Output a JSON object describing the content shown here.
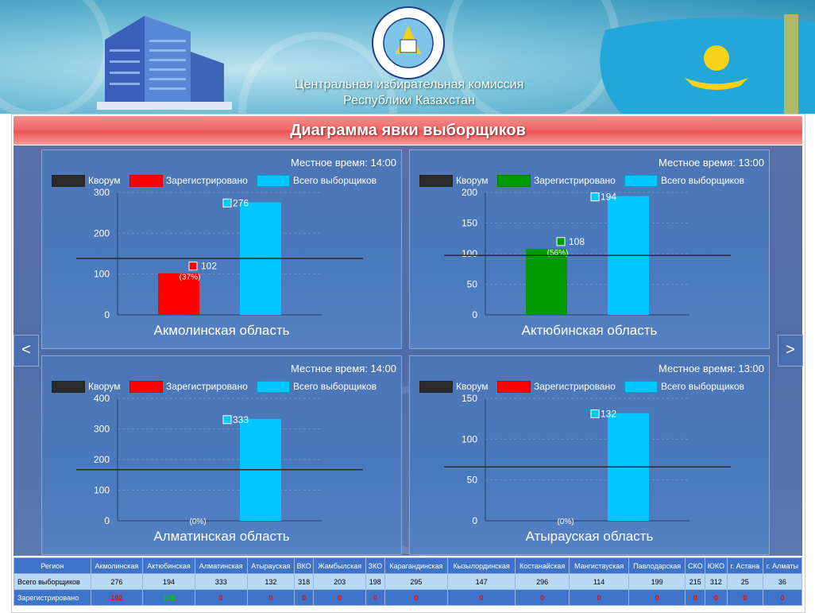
{
  "header": {
    "title_line1": "Центральная избирательная комиссия",
    "title_line2": "Республики Казахстан"
  },
  "page_title": "Диаграмма явки выборщиков",
  "nav": {
    "prev": "<",
    "next": ">"
  },
  "legend": {
    "quorum": "Кворум",
    "registered": "Зарегистрировано",
    "total": "Всего выборщиков"
  },
  "colors": {
    "quorum": "#2b2b2b",
    "total": "#00c8ff",
    "red": "#ff0000",
    "green": "#009900",
    "title_bar": "#ef5a5a"
  },
  "panels": [
    {
      "time": "Местное время: 14:00",
      "region": "Акмолинская область"
    },
    {
      "time": "Местное время: 13:00",
      "region": "Актюбинская область"
    },
    {
      "time": "Местное время: 14:00",
      "region": "Алматинская область"
    },
    {
      "time": "Местное время: 13:00",
      "region": "Атырауская область"
    }
  ],
  "chart_data": [
    {
      "type": "bar",
      "region": "Акмолинская область",
      "ylim": [
        0,
        300
      ],
      "yticks": [
        0,
        100,
        200,
        300
      ],
      "quorum": 138,
      "registered": 102,
      "registered_label": "102",
      "percent_label": "(37%)",
      "registered_color": "#ff0000",
      "total": 276,
      "total_label": "276"
    },
    {
      "type": "bar",
      "region": "Актюбинская область",
      "ylim": [
        0,
        200
      ],
      "yticks": [
        0,
        50,
        100,
        150,
        200
      ],
      "quorum": 97,
      "registered": 108,
      "registered_label": "108",
      "percent_label": "(56%)",
      "registered_color": "#009900",
      "total": 194,
      "total_label": "194"
    },
    {
      "type": "bar",
      "region": "Алматинская область",
      "ylim": [
        0,
        400
      ],
      "yticks": [
        0,
        100,
        200,
        300,
        400
      ],
      "quorum": 167,
      "registered": 0,
      "registered_label": "",
      "percent_label": "(0%)",
      "registered_color": "#ff0000",
      "total": 333,
      "total_label": "333"
    },
    {
      "type": "bar",
      "region": "Атырауская область",
      "ylim": [
        0,
        150
      ],
      "yticks": [
        0,
        50,
        100,
        150
      ],
      "quorum": 66,
      "registered": 0,
      "registered_label": "",
      "percent_label": "(0%)",
      "registered_color": "#ff0000",
      "total": 132,
      "total_label": "132"
    }
  ],
  "table": {
    "headers": [
      "Регион",
      "Акмолинская",
      "Актюбинская",
      "Алматинская",
      "Атырауская",
      "ВКО",
      "Жамбылская",
      "ЗКО",
      "Карагандинская",
      "Кызылординская",
      "Костанайская",
      "Мангистауская",
      "Павлодарская",
      "СКО",
      "ЮКО",
      "г. Астана",
      "г. Алматы"
    ],
    "row_total": [
      "Всего выборщиков",
      "276",
      "194",
      "333",
      "132",
      "318",
      "203",
      "198",
      "295",
      "147",
      "296",
      "114",
      "199",
      "215",
      "312",
      "25",
      "36"
    ],
    "row_registered": [
      "Зарегистрировано",
      "102",
      "108",
      "0",
      "0",
      "0",
      "0",
      "0",
      "0",
      "0",
      "0",
      "0",
      "0",
      "0",
      "0",
      "0",
      "0"
    ],
    "registered_colors": [
      "",
      "#ff0000",
      "#00c800",
      "#ff0000",
      "#ff0000",
      "#ff0000",
      "#ff0000",
      "#ff0000",
      "#ff0000",
      "#ff0000",
      "#ff0000",
      "#ff0000",
      "#ff0000",
      "#ff0000",
      "#ff0000",
      "#ff0000",
      "#ff0000"
    ]
  }
}
